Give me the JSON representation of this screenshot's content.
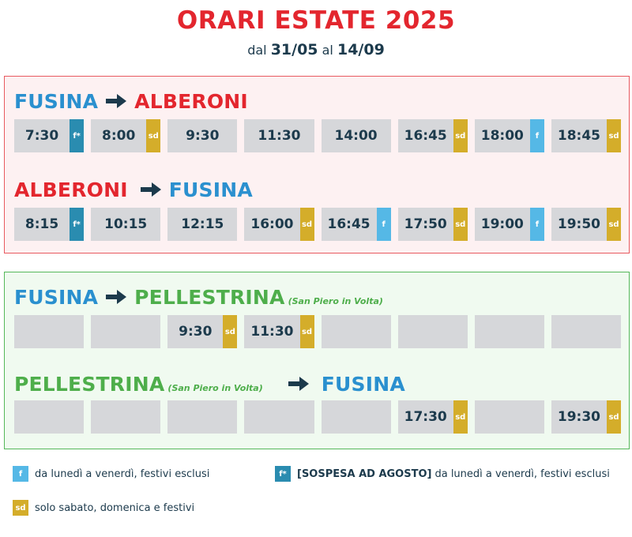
{
  "title": "ORARI ESTATE 2025",
  "subtitle": {
    "prefix": "dal",
    "from": "31/05",
    "middle": "al",
    "to": "14/09"
  },
  "colors": {
    "red": "#e3262e",
    "blue": "#2a90cf",
    "green": "#4eae4b",
    "sd": "#d4ad2a",
    "f": "#55b8e6",
    "f_star": "#2a8cb0",
    "cell": "#d6d7da"
  },
  "routes": [
    {
      "from": "FUSINA",
      "to": "ALBERONI",
      "from_note": "",
      "to_note": "",
      "times": [
        {
          "time": "7:30",
          "tag": "f*"
        },
        {
          "time": "8:00",
          "tag": "sd"
        },
        {
          "time": "9:30",
          "tag": ""
        },
        {
          "time": "11:30",
          "tag": ""
        },
        {
          "time": "14:00",
          "tag": ""
        },
        {
          "time": "16:45",
          "tag": "sd"
        },
        {
          "time": "18:00",
          "tag": "f"
        },
        {
          "time": "18:45",
          "tag": "sd"
        }
      ]
    },
    {
      "from": "ALBERONI",
      "to": "FUSINA",
      "from_note": "",
      "to_note": "",
      "times": [
        {
          "time": "8:15",
          "tag": "f*"
        },
        {
          "time": "10:15",
          "tag": ""
        },
        {
          "time": "12:15",
          "tag": ""
        },
        {
          "time": "16:00",
          "tag": "sd"
        },
        {
          "time": "16:45",
          "tag": "f"
        },
        {
          "time": "17:50",
          "tag": "sd"
        },
        {
          "time": "19:00",
          "tag": "f"
        },
        {
          "time": "19:50",
          "tag": "sd"
        }
      ]
    },
    {
      "from": "FUSINA",
      "to": "PELLESTRINA",
      "from_note": "",
      "to_note": "(San Piero in Volta)",
      "times": [
        {
          "time": "",
          "tag": ""
        },
        {
          "time": "",
          "tag": ""
        },
        {
          "time": "9:30",
          "tag": "sd"
        },
        {
          "time": "11:30",
          "tag": "sd"
        },
        {
          "time": "",
          "tag": ""
        },
        {
          "time": "",
          "tag": ""
        },
        {
          "time": "",
          "tag": ""
        },
        {
          "time": "",
          "tag": ""
        }
      ]
    },
    {
      "from": "PELLESTRINA",
      "to": "FUSINA",
      "from_note": "(San Piero in Volta)",
      "to_note": "",
      "times": [
        {
          "time": "",
          "tag": ""
        },
        {
          "time": "",
          "tag": ""
        },
        {
          "time": "",
          "tag": ""
        },
        {
          "time": "",
          "tag": ""
        },
        {
          "time": "",
          "tag": ""
        },
        {
          "time": "17:30",
          "tag": "sd"
        },
        {
          "time": "",
          "tag": ""
        },
        {
          "time": "19:30",
          "tag": "sd"
        }
      ]
    }
  ],
  "legend": {
    "f": {
      "tag": "f",
      "text": "da lunedì a venerdì, festivi esclusi"
    },
    "f_star": {
      "tag": "f*",
      "bold": "[SOSPESA AD AGOSTO]",
      "text": "da lunedì a venerdì, festivi esclusi"
    },
    "sd": {
      "tag": "sd",
      "text": "solo sabato, domenica e festivi"
    }
  }
}
